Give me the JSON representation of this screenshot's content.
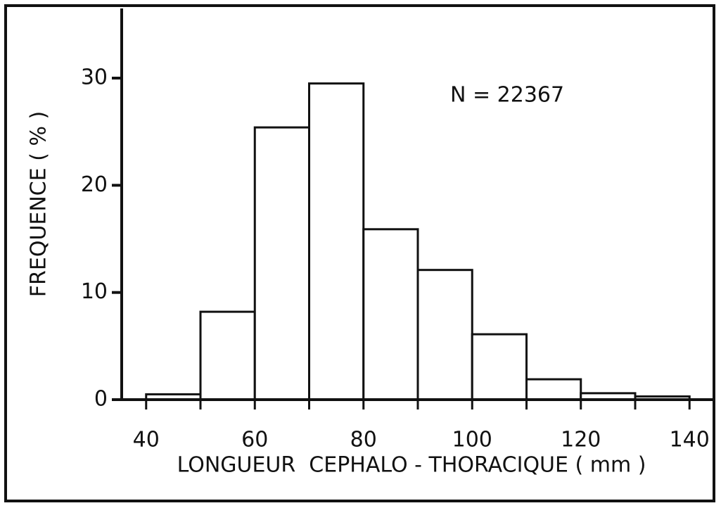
{
  "chart_data": {
    "type": "histogram",
    "xlabel": "LONGUEUR  CEPHALO - THORACIQUE ( mm )",
    "ylabel": "FREQUENCE ( % )",
    "annotation": "N = 22367",
    "bins": [
      40,
      50,
      60,
      70,
      80,
      90,
      100,
      110,
      120,
      130,
      140
    ],
    "counts": [
      0.5,
      8.2,
      25.4,
      29.5,
      15.9,
      12.1,
      6.1,
      1.9,
      0.6,
      0.3
    ],
    "color": "#ffffff",
    "xlim": [
      35.5,
      144.5
    ],
    "ylim": [
      0,
      36.5
    ],
    "xticks": [
      40,
      60,
      80,
      100,
      120,
      140
    ],
    "xticks_minor": [
      50,
      70,
      90,
      110,
      130
    ],
    "yticks": [
      0,
      10,
      20,
      30
    ],
    "grid": false
  }
}
